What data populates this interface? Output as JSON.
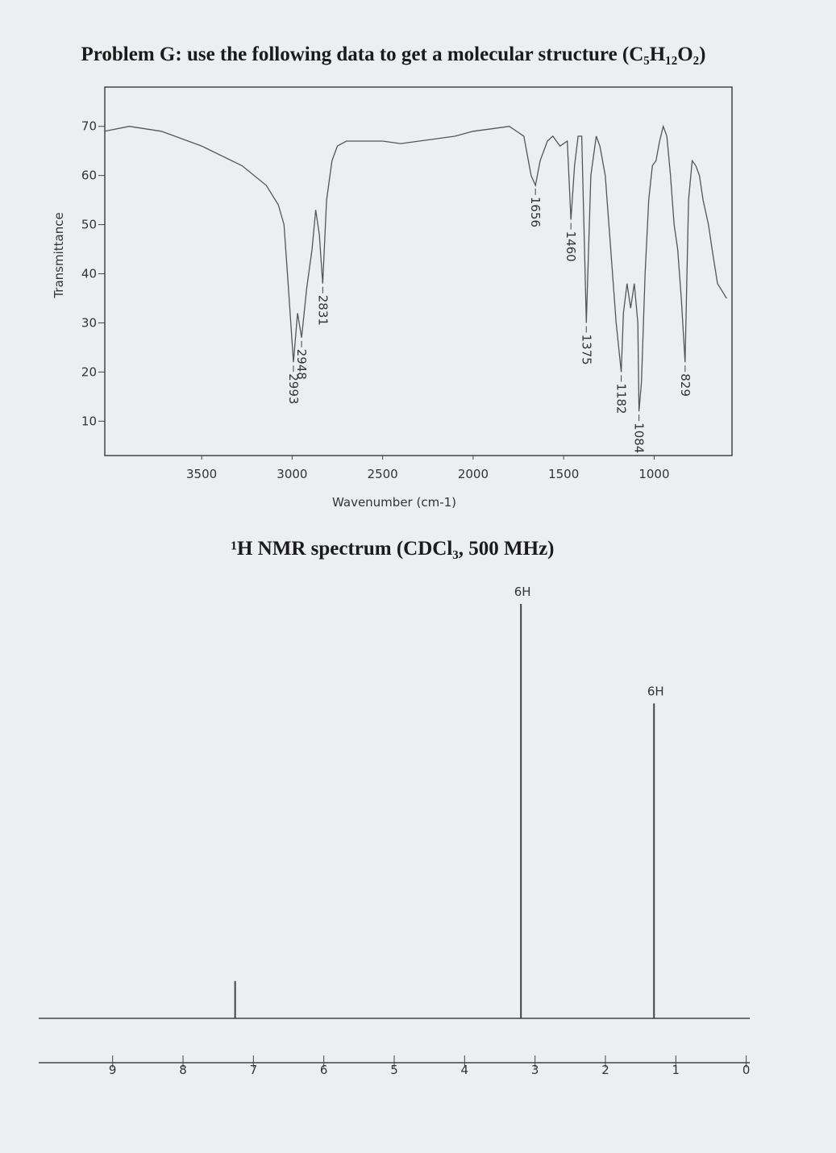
{
  "title": "Problem G: use the following data to get a molecular structure (C₅H₁₂O₂)",
  "chart_data": [
    {
      "type": "line",
      "xlabel": "Wavenumber (cm-1)",
      "ylabel": "Transmittance",
      "xlim": [
        4035,
        570
      ],
      "xticks": [
        3500,
        3000,
        2500,
        2000,
        1500,
        1000
      ],
      "ylim": [
        3,
        78
      ],
      "yticks": [
        10,
        20,
        30,
        40,
        50,
        60,
        70
      ],
      "color": "#555555",
      "x": [
        4035,
        3900,
        3723,
        3500,
        3277,
        3143,
        3076,
        3045,
        3022,
        2993,
        2970,
        2948,
        2920,
        2890,
        2870,
        2850,
        2831,
        2810,
        2780,
        2750,
        2700,
        2500,
        2400,
        2200,
        2100,
        2000,
        1900,
        1800,
        1720,
        1680,
        1656,
        1630,
        1590,
        1560,
        1520,
        1480,
        1460,
        1440,
        1420,
        1400,
        1375,
        1350,
        1320,
        1300,
        1270,
        1230,
        1210,
        1182,
        1170,
        1150,
        1130,
        1110,
        1090,
        1084,
        1070,
        1050,
        1030,
        1010,
        990,
        970,
        950,
        930,
        910,
        890,
        870,
        850,
        829,
        810,
        790,
        770,
        750,
        730,
        700,
        680,
        650,
        600
      ],
      "values": [
        69,
        70,
        69,
        66,
        62,
        58,
        54,
        50,
        38,
        22,
        32,
        27,
        37,
        45,
        53,
        48,
        38,
        55,
        63,
        66,
        67,
        67,
        66.5,
        67.5,
        68,
        69,
        69.5,
        70,
        68,
        60,
        58,
        63,
        67,
        68,
        66,
        67,
        51,
        62,
        68,
        68,
        30,
        60,
        68,
        66,
        60,
        40,
        30,
        20,
        32,
        38,
        33,
        38,
        30,
        12,
        18,
        40,
        55,
        62,
        63,
        67,
        70,
        68,
        60,
        50,
        45,
        35,
        22,
        55,
        63,
        62,
        60,
        55,
        50,
        45,
        38,
        35
      ],
      "peak_labels": [
        2993,
        2948,
        2831,
        1656,
        1460,
        1375,
        1182,
        1084,
        829
      ]
    },
    {
      "type": "nmr",
      "title": "¹H NMR spectrum (CDCl₃, 500 MHz)",
      "xlim": [
        10.05,
        -0.05
      ],
      "xticks": [
        9,
        8,
        7,
        6,
        5,
        4,
        3,
        2,
        1,
        0
      ],
      "ylim": [
        0,
        100
      ],
      "color": "#444444",
      "x": [
        7.26,
        3.2,
        1.31
      ],
      "values": [
        9,
        100,
        76
      ],
      "annotations": [
        null,
        "6H",
        "6H"
      ]
    }
  ]
}
